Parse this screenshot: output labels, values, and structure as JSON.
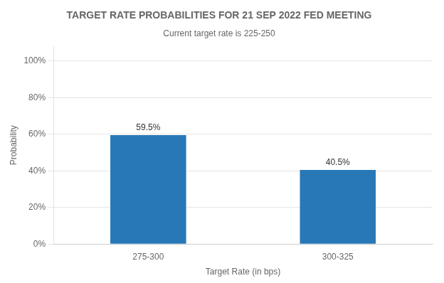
{
  "chart_data": {
    "type": "bar",
    "title": "TARGET RATE PROBABILITIES FOR 21 SEP 2022 FED MEETING",
    "subtitle": "Current target rate is 225-250",
    "categories": [
      "275-300",
      "300-325"
    ],
    "values": [
      59.5,
      40.5
    ],
    "value_labels": [
      "59.5%",
      "40.5%"
    ],
    "data_labels": true,
    "color": "#2878b8",
    "xlabel": "Target Rate (in bps)",
    "ylabel": "Probability",
    "ylim": [
      0,
      108
    ],
    "yticks": [
      {
        "value": 0,
        "label": "0%"
      },
      {
        "value": 20,
        "label": "20%"
      },
      {
        "value": 40,
        "label": "40%"
      },
      {
        "value": 60,
        "label": "60%"
      },
      {
        "value": 80,
        "label": "80%"
      },
      {
        "value": 100,
        "label": "100%"
      }
    ],
    "grid": true
  }
}
